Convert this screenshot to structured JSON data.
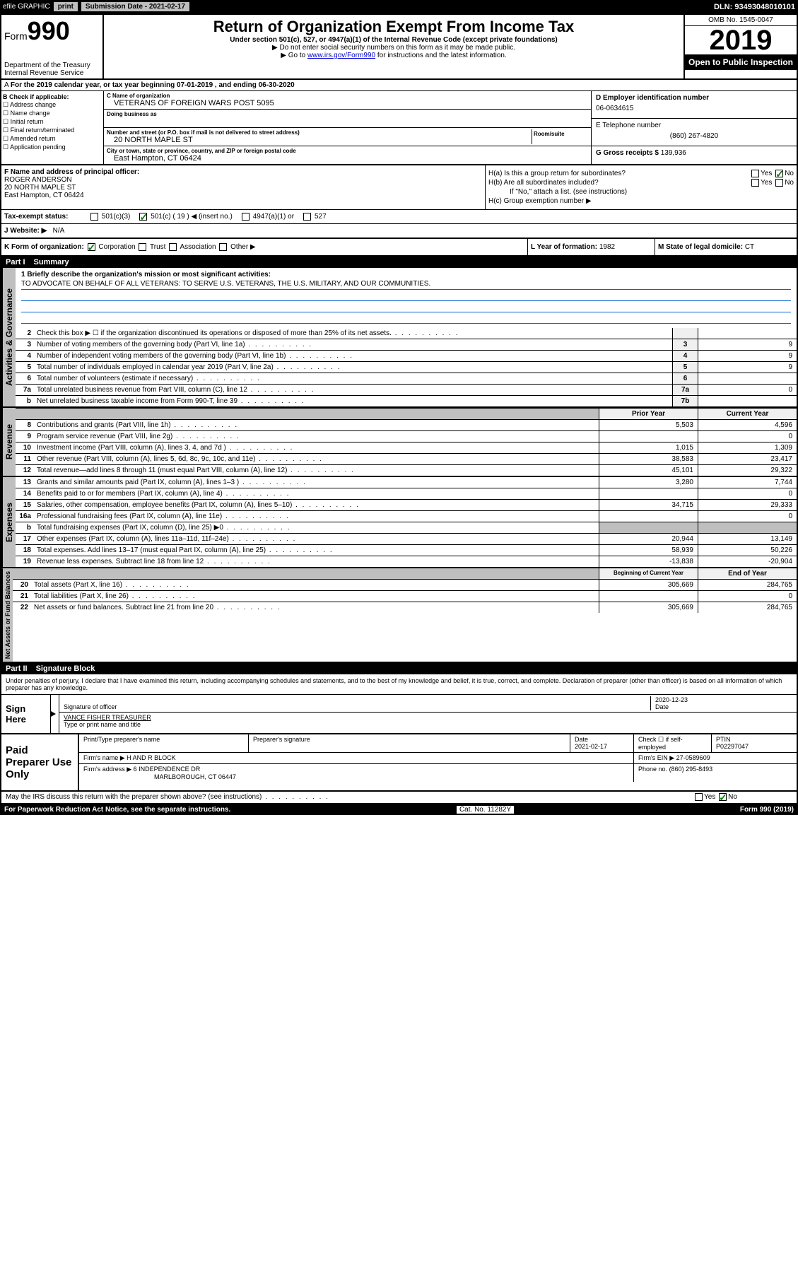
{
  "topbar": {
    "efile": "efile GRAPHIC",
    "print": "print",
    "submission": "Submission Date - 2021-02-17",
    "dln": "DLN: 93493048010101"
  },
  "header": {
    "form_prefix": "Form",
    "form_number": "990",
    "dept1": "Department of the Treasury",
    "dept2": "Internal Revenue Service",
    "title": "Return of Organization Exempt From Income Tax",
    "subtitle": "Under section 501(c), 527, or 4947(a)(1) of the Internal Revenue Code (except private foundations)",
    "note1": "▶ Do not enter social security numbers on this form as it may be made public.",
    "note2_pre": "▶ Go to ",
    "note2_link": "www.irs.gov/Form990",
    "note2_post": " for instructions and the latest information.",
    "omb": "OMB No. 1545-0047",
    "year": "2019",
    "open": "Open to Public Inspection"
  },
  "period": "For the 2019 calendar year, or tax year beginning 07-01-2019    , and ending 06-30-2020",
  "boxB": {
    "header": "B Check if applicable:",
    "items": [
      "☐ Address change",
      "☐ Name change",
      "☐ Initial return",
      "☐ Final return/terminated",
      "☐ Amended return",
      "☐ Application pending"
    ]
  },
  "boxC": {
    "name_label": "C Name of organization",
    "name": "VETERANS OF FOREIGN WARS POST 5095",
    "dba_label": "Doing business as",
    "addr_label": "Number and street (or P.O. box if mail is not delivered to street address)",
    "room_label": "Room/suite",
    "addr": "20 NORTH MAPLE ST",
    "city_label": "City or town, state or province, country, and ZIP or foreign postal code",
    "city": "East Hampton, CT  06424"
  },
  "boxD": {
    "label": "D Employer identification number",
    "val": "06-0634615"
  },
  "boxE": {
    "label": "E Telephone number",
    "val": "(860) 267-4820"
  },
  "boxG": {
    "label": "G Gross receipts $",
    "val": "139,936"
  },
  "boxF": {
    "label": "F  Name and address of principal officer:",
    "name": "ROGER ANDERSON",
    "addr1": "20 NORTH MAPLE ST",
    "addr2": "East Hampton, CT  06424"
  },
  "boxH": {
    "a": "H(a)  Is this a group return for subordinates?",
    "b": "H(b)  Are all subordinates included?",
    "b_note": "If \"No,\" attach a list. (see instructions)",
    "c": "H(c)  Group exemption number ▶",
    "yes": "Yes",
    "no": "No"
  },
  "boxI": {
    "label": "Tax-exempt status:",
    "opts": [
      "501(c)(3)",
      "501(c) ( 19 ) ◀ (insert no.)",
      "4947(a)(1) or",
      "527"
    ]
  },
  "boxJ": {
    "label": "J    Website: ▶",
    "val": "N/A"
  },
  "boxK": {
    "label": "K Form of organization:",
    "opts": [
      "Corporation",
      "Trust",
      "Association",
      "Other ▶"
    ]
  },
  "boxL": {
    "label": "L Year of formation:",
    "val": "1982"
  },
  "boxM": {
    "label": "M State of legal domicile:",
    "val": "CT"
  },
  "part1": {
    "label": "Part I",
    "title": "Summary"
  },
  "mission": {
    "q": "1  Briefly describe the organization's mission or most significant activities:",
    "text": "TO ADVOCATE ON BEHALF OF ALL VETERANS: TO SERVE U.S. VETERANS, THE U.S. MILITARY, AND OUR COMMUNITIES."
  },
  "gov_lines": [
    {
      "num": "2",
      "text": "Check this box ▶ ☐  if the organization discontinued its operations or disposed of more than 25% of its net assets.",
      "box": "",
      "val": ""
    },
    {
      "num": "3",
      "text": "Number of voting members of the governing body (Part VI, line 1a)",
      "box": "3",
      "val": "9"
    },
    {
      "num": "4",
      "text": "Number of independent voting members of the governing body (Part VI, line 1b)",
      "box": "4",
      "val": "9"
    },
    {
      "num": "5",
      "text": "Total number of individuals employed in calendar year 2019 (Part V, line 2a)",
      "box": "5",
      "val": "9"
    },
    {
      "num": "6",
      "text": "Total number of volunteers (estimate if necessary)",
      "box": "6",
      "val": ""
    },
    {
      "num": "7a",
      "text": "Total unrelated business revenue from Part VIII, column (C), line 12",
      "box": "7a",
      "val": "0"
    },
    {
      "num": "b",
      "text": "Net unrelated business taxable income from Form 990-T, line 39",
      "box": "7b",
      "val": ""
    }
  ],
  "rev_header": {
    "prior": "Prior Year",
    "current": "Current Year"
  },
  "rev_lines": [
    {
      "num": "8",
      "text": "Contributions and grants (Part VIII, line 1h)",
      "prior": "5,503",
      "current": "4,596"
    },
    {
      "num": "9",
      "text": "Program service revenue (Part VIII, line 2g)",
      "prior": "",
      "current": "0"
    },
    {
      "num": "10",
      "text": "Investment income (Part VIII, column (A), lines 3, 4, and 7d )",
      "prior": "1,015",
      "current": "1,309"
    },
    {
      "num": "11",
      "text": "Other revenue (Part VIII, column (A), lines 5, 6d, 8c, 9c, 10c, and 11e)",
      "prior": "38,583",
      "current": "23,417"
    },
    {
      "num": "12",
      "text": "Total revenue—add lines 8 through 11 (must equal Part VIII, column (A), line 12)",
      "prior": "45,101",
      "current": "29,322"
    }
  ],
  "exp_lines": [
    {
      "num": "13",
      "text": "Grants and similar amounts paid (Part IX, column (A), lines 1–3 )",
      "prior": "3,280",
      "current": "7,744"
    },
    {
      "num": "14",
      "text": "Benefits paid to or for members (Part IX, column (A), line 4)",
      "prior": "",
      "current": "0"
    },
    {
      "num": "15",
      "text": "Salaries, other compensation, employee benefits (Part IX, column (A), lines 5–10)",
      "prior": "34,715",
      "current": "29,333"
    },
    {
      "num": "16a",
      "text": "Professional fundraising fees (Part IX, column (A), line 11e)",
      "prior": "",
      "current": "0"
    },
    {
      "num": "b",
      "text": "Total fundraising expenses (Part IX, column (D), line 25) ▶0",
      "prior": "",
      "current": "",
      "shaded": true
    },
    {
      "num": "17",
      "text": "Other expenses (Part IX, column (A), lines 11a–11d, 11f–24e)",
      "prior": "20,944",
      "current": "13,149"
    },
    {
      "num": "18",
      "text": "Total expenses. Add lines 13–17 (must equal Part IX, column (A), line 25)",
      "prior": "58,939",
      "current": "50,226"
    },
    {
      "num": "19",
      "text": "Revenue less expenses. Subtract line 18 from line 12",
      "prior": "-13,838",
      "current": "-20,904"
    }
  ],
  "net_header": {
    "prior": "Beginning of Current Year",
    "current": "End of Year"
  },
  "net_lines": [
    {
      "num": "20",
      "text": "Total assets (Part X, line 16)",
      "prior": "305,669",
      "current": "284,765"
    },
    {
      "num": "21",
      "text": "Total liabilities (Part X, line 26)",
      "prior": "",
      "current": "0"
    },
    {
      "num": "22",
      "text": "Net assets or fund balances. Subtract line 21 from line 20",
      "prior": "305,669",
      "current": "284,765"
    }
  ],
  "side_labels": {
    "gov": "Activities & Governance",
    "rev": "Revenue",
    "exp": "Expenses",
    "net": "Net Assets or Fund Balances"
  },
  "part2": {
    "label": "Part II",
    "title": "Signature Block"
  },
  "sig": {
    "intro": "Under penalties of perjury, I declare that I have examined this return, including accompanying schedules and statements, and to the best of my knowledge and belief, it is true, correct, and complete. Declaration of preparer (other than officer) is based on all information of which preparer has any knowledge.",
    "sign_here": "Sign Here",
    "sig_label": "Signature of officer",
    "date": "2020-12-23",
    "date_label": "Date",
    "name": "VANCE FISHER TREASURER",
    "name_label": "Type or print name and title"
  },
  "paid": {
    "label": "Paid Preparer Use Only",
    "h1": "Print/Type preparer's name",
    "h2": "Preparer's signature",
    "h3": "Date",
    "h3v": "2021-02-17",
    "h4": "Check ☐ if self-employed",
    "h5": "PTIN",
    "h5v": "P02297047",
    "firm_label": "Firm's name     ▶",
    "firm": "H AND R BLOCK",
    "ein_label": "Firm's EIN ▶",
    "ein": "27-0589609",
    "addr_label": "Firm's address ▶",
    "addr1": "6 INDEPENDENCE DR",
    "addr2": "MARLBOROUGH, CT  06447",
    "phone_label": "Phone no.",
    "phone": "(860) 295-8493"
  },
  "footer": {
    "discuss": "May the IRS discuss this return with the preparer shown above? (see instructions)",
    "yes": "Yes",
    "no": "No",
    "paperwork": "For Paperwork Reduction Act Notice, see the separate instructions.",
    "cat": "Cat. No. 11282Y",
    "form": "Form 990 (2019)"
  }
}
